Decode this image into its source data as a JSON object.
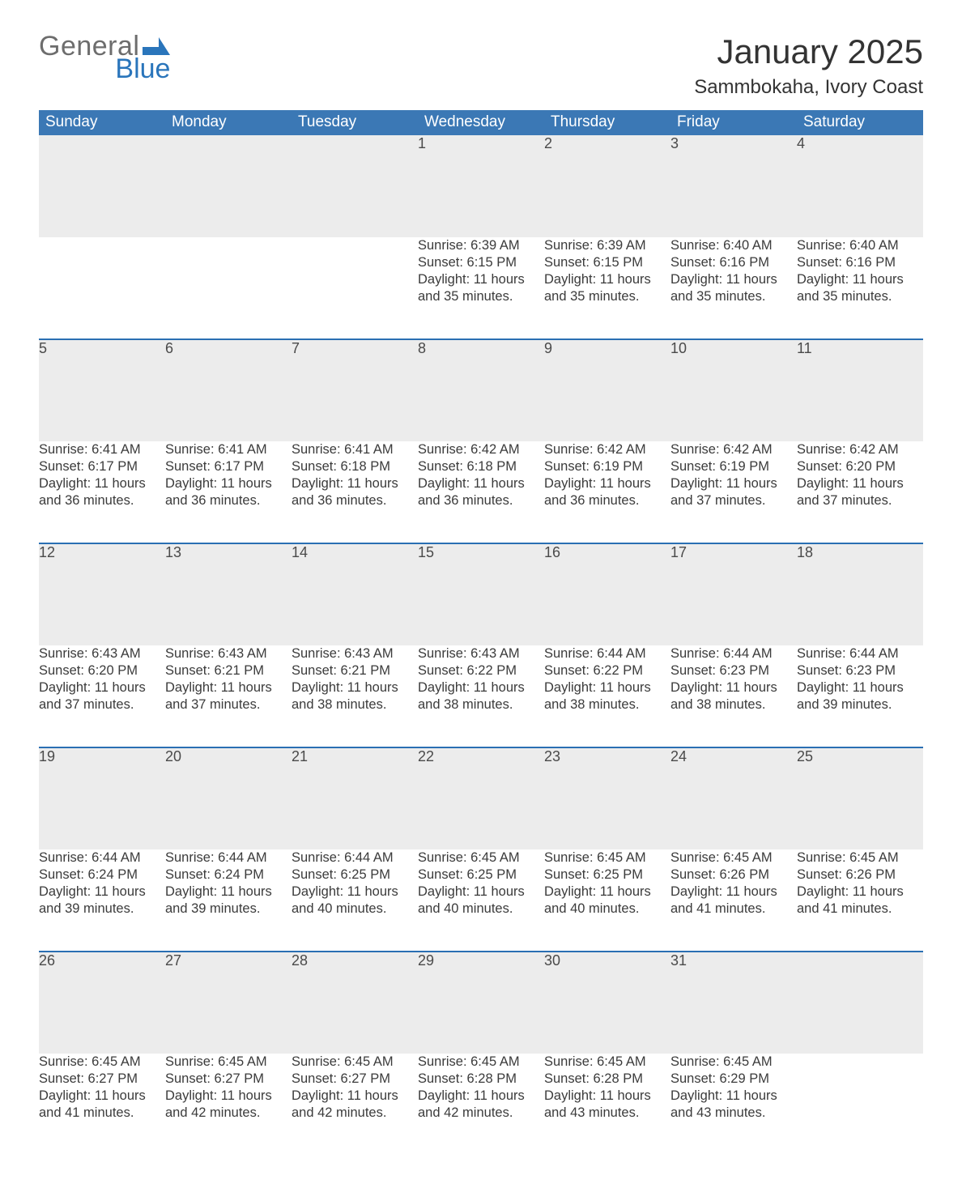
{
  "brand": {
    "word1": "General",
    "word2": "Blue"
  },
  "title": {
    "month": "January 2025",
    "location": "Sammbokaha, Ivory Coast"
  },
  "colors": {
    "header_blue": "#3b78b5",
    "accent_blue": "#2a6fb3",
    "row_stripe": "#ececec",
    "logo_gray": "#6d6d6d",
    "logo_blue": "#2a75bb",
    "text": "#333333",
    "background": "#ffffff"
  },
  "typography": {
    "title_month_size_pt": 32,
    "title_location_size_pt": 18,
    "weekday_header_size_pt": 14,
    "daynum_size_pt": 14,
    "body_size_pt": 12,
    "font_family": "Arial"
  },
  "labels": {
    "sunrise": "Sunrise:",
    "sunset": "Sunset:",
    "daylight": "Daylight:"
  },
  "calendar": {
    "type": "table",
    "columns": [
      "Sunday",
      "Monday",
      "Tuesday",
      "Wednesday",
      "Thursday",
      "Friday",
      "Saturday"
    ],
    "weeks": [
      [
        null,
        null,
        null,
        {
          "day": 1,
          "sunrise": "6:39 AM",
          "sunset": "6:15 PM",
          "daylight": "11 hours and 35 minutes."
        },
        {
          "day": 2,
          "sunrise": "6:39 AM",
          "sunset": "6:15 PM",
          "daylight": "11 hours and 35 minutes."
        },
        {
          "day": 3,
          "sunrise": "6:40 AM",
          "sunset": "6:16 PM",
          "daylight": "11 hours and 35 minutes."
        },
        {
          "day": 4,
          "sunrise": "6:40 AM",
          "sunset": "6:16 PM",
          "daylight": "11 hours and 35 minutes."
        }
      ],
      [
        {
          "day": 5,
          "sunrise": "6:41 AM",
          "sunset": "6:17 PM",
          "daylight": "11 hours and 36 minutes."
        },
        {
          "day": 6,
          "sunrise": "6:41 AM",
          "sunset": "6:17 PM",
          "daylight": "11 hours and 36 minutes."
        },
        {
          "day": 7,
          "sunrise": "6:41 AM",
          "sunset": "6:18 PM",
          "daylight": "11 hours and 36 minutes."
        },
        {
          "day": 8,
          "sunrise": "6:42 AM",
          "sunset": "6:18 PM",
          "daylight": "11 hours and 36 minutes."
        },
        {
          "day": 9,
          "sunrise": "6:42 AM",
          "sunset": "6:19 PM",
          "daylight": "11 hours and 36 minutes."
        },
        {
          "day": 10,
          "sunrise": "6:42 AM",
          "sunset": "6:19 PM",
          "daylight": "11 hours and 37 minutes."
        },
        {
          "day": 11,
          "sunrise": "6:42 AM",
          "sunset": "6:20 PM",
          "daylight": "11 hours and 37 minutes."
        }
      ],
      [
        {
          "day": 12,
          "sunrise": "6:43 AM",
          "sunset": "6:20 PM",
          "daylight": "11 hours and 37 minutes."
        },
        {
          "day": 13,
          "sunrise": "6:43 AM",
          "sunset": "6:21 PM",
          "daylight": "11 hours and 37 minutes."
        },
        {
          "day": 14,
          "sunrise": "6:43 AM",
          "sunset": "6:21 PM",
          "daylight": "11 hours and 38 minutes."
        },
        {
          "day": 15,
          "sunrise": "6:43 AM",
          "sunset": "6:22 PM",
          "daylight": "11 hours and 38 minutes."
        },
        {
          "day": 16,
          "sunrise": "6:44 AM",
          "sunset": "6:22 PM",
          "daylight": "11 hours and 38 minutes."
        },
        {
          "day": 17,
          "sunrise": "6:44 AM",
          "sunset": "6:23 PM",
          "daylight": "11 hours and 38 minutes."
        },
        {
          "day": 18,
          "sunrise": "6:44 AM",
          "sunset": "6:23 PM",
          "daylight": "11 hours and 39 minutes."
        }
      ],
      [
        {
          "day": 19,
          "sunrise": "6:44 AM",
          "sunset": "6:24 PM",
          "daylight": "11 hours and 39 minutes."
        },
        {
          "day": 20,
          "sunrise": "6:44 AM",
          "sunset": "6:24 PM",
          "daylight": "11 hours and 39 minutes."
        },
        {
          "day": 21,
          "sunrise": "6:44 AM",
          "sunset": "6:25 PM",
          "daylight": "11 hours and 40 minutes."
        },
        {
          "day": 22,
          "sunrise": "6:45 AM",
          "sunset": "6:25 PM",
          "daylight": "11 hours and 40 minutes."
        },
        {
          "day": 23,
          "sunrise": "6:45 AM",
          "sunset": "6:25 PM",
          "daylight": "11 hours and 40 minutes."
        },
        {
          "day": 24,
          "sunrise": "6:45 AM",
          "sunset": "6:26 PM",
          "daylight": "11 hours and 41 minutes."
        },
        {
          "day": 25,
          "sunrise": "6:45 AM",
          "sunset": "6:26 PM",
          "daylight": "11 hours and 41 minutes."
        }
      ],
      [
        {
          "day": 26,
          "sunrise": "6:45 AM",
          "sunset": "6:27 PM",
          "daylight": "11 hours and 41 minutes."
        },
        {
          "day": 27,
          "sunrise": "6:45 AM",
          "sunset": "6:27 PM",
          "daylight": "11 hours and 42 minutes."
        },
        {
          "day": 28,
          "sunrise": "6:45 AM",
          "sunset": "6:27 PM",
          "daylight": "11 hours and 42 minutes."
        },
        {
          "day": 29,
          "sunrise": "6:45 AM",
          "sunset": "6:28 PM",
          "daylight": "11 hours and 42 minutes."
        },
        {
          "day": 30,
          "sunrise": "6:45 AM",
          "sunset": "6:28 PM",
          "daylight": "11 hours and 43 minutes."
        },
        {
          "day": 31,
          "sunrise": "6:45 AM",
          "sunset": "6:29 PM",
          "daylight": "11 hours and 43 minutes."
        },
        null
      ]
    ]
  }
}
